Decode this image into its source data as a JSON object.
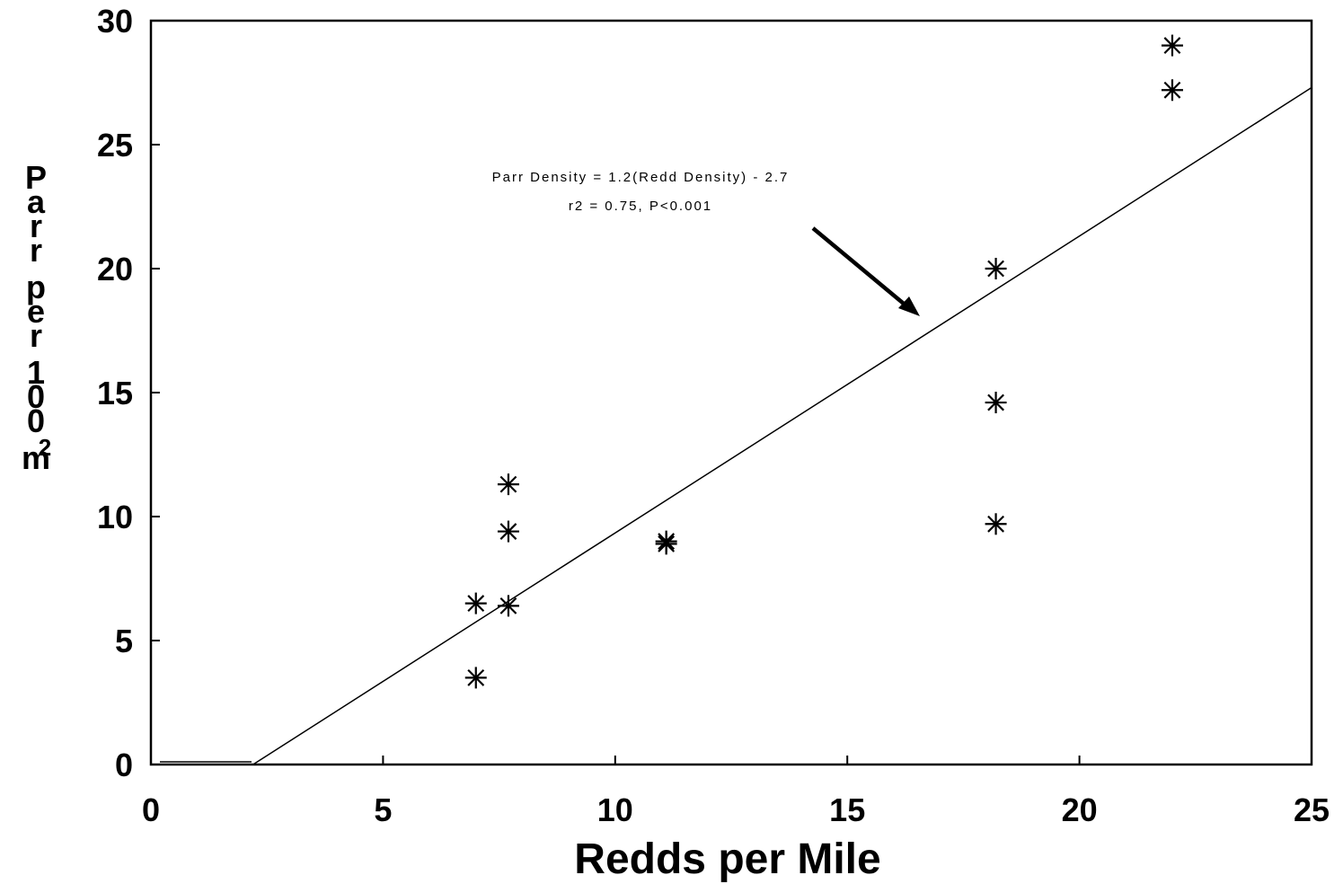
{
  "chart_data": {
    "type": "scatter",
    "xlabel": "Redds per Mile",
    "ylabel": "Parr per 100 m",
    "ylabel_superscript": "2",
    "xlim": [
      0,
      25
    ],
    "ylim": [
      0,
      30
    ],
    "xticks": [
      0,
      5,
      10,
      15,
      20,
      25
    ],
    "yticks": [
      0,
      5,
      10,
      15,
      20,
      25,
      30
    ],
    "grid": false,
    "marker": "asterisk",
    "points": [
      {
        "x": 7.0,
        "y": 3.5
      },
      {
        "x": 7.0,
        "y": 6.5
      },
      {
        "x": 7.7,
        "y": 6.4
      },
      {
        "x": 7.7,
        "y": 9.4
      },
      {
        "x": 7.7,
        "y": 11.3
      },
      {
        "x": 11.1,
        "y": 8.9
      },
      {
        "x": 11.1,
        "y": 9.0
      },
      {
        "x": 18.2,
        "y": 9.7
      },
      {
        "x": 18.2,
        "y": 14.6
      },
      {
        "x": 18.2,
        "y": 20.0
      },
      {
        "x": 22.0,
        "y": 27.2
      },
      {
        "x": 22.0,
        "y": 29.0
      }
    ],
    "regression": {
      "slope": 1.2,
      "intercept": -2.7,
      "x_range": [
        2.2,
        25
      ],
      "equation_text": "Parr Density = 1.2(Redd Density) - 2.7",
      "stats_text": "r2 = 0.75, P<0.001"
    }
  }
}
